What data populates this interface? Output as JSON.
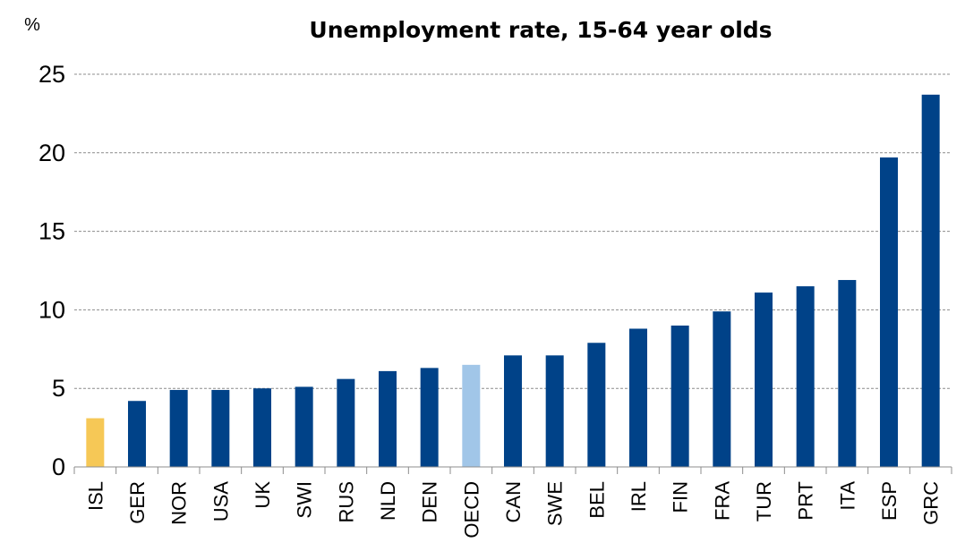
{
  "chart_data": {
    "type": "bar",
    "title": "Unemployment rate, 15-64 year olds",
    "ylabel": "%",
    "xlabel": "",
    "ylim": [
      0,
      25
    ],
    "yticks": [
      0,
      5,
      10,
      15,
      20,
      25
    ],
    "grid": true,
    "categories": [
      "ISL",
      "GER",
      "NOR",
      "USA",
      "UK",
      "SWI",
      "RUS",
      "NLD",
      "DEN",
      "OECD",
      "CAN",
      "SWE",
      "BEL",
      "IRL",
      "FIN",
      "FRA",
      "TUR",
      "PRT",
      "ITA",
      "ESP",
      "GRC"
    ],
    "values": [
      3.1,
      4.2,
      4.9,
      4.9,
      5.0,
      5.1,
      5.6,
      6.1,
      6.3,
      6.5,
      7.1,
      7.1,
      7.9,
      8.8,
      9.0,
      9.9,
      11.1,
      11.5,
      11.9,
      19.7,
      23.7
    ],
    "colors": {
      "default": "#004288",
      "ISL": "#f6c856",
      "OECD": "#a1c6e8"
    }
  }
}
